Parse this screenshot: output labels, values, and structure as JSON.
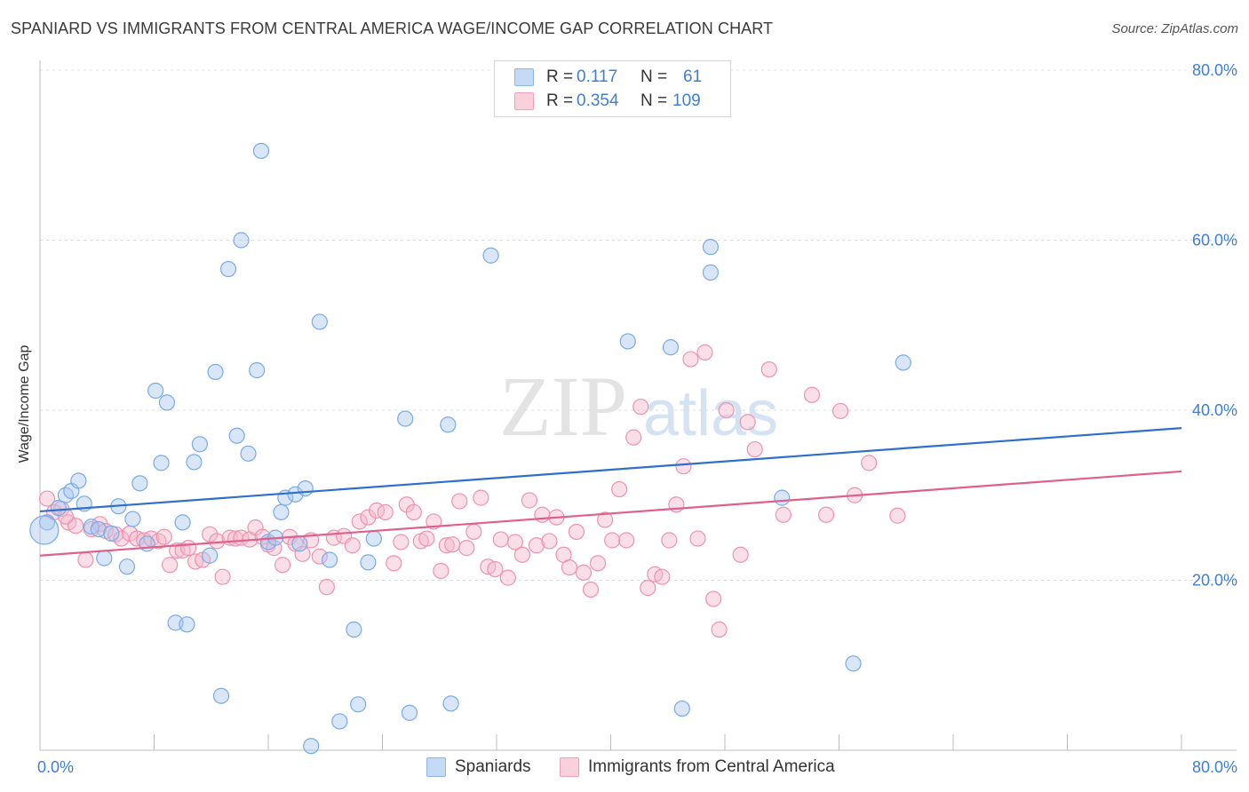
{
  "title": "SPANIARD VS IMMIGRANTS FROM CENTRAL AMERICA WAGE/INCOME GAP CORRELATION CHART",
  "source": "Source: ZipAtlas.com",
  "watermark": {
    "zip": "ZIP",
    "atlas": "atlas"
  },
  "legend": {
    "rows": [
      {
        "r_label": "R =",
        "r_value": "0.117",
        "n_label": "N =",
        "n_value": "61",
        "color": "#a9c8f0"
      },
      {
        "r_label": "R =",
        "r_value": "0.354",
        "n_label": "N =",
        "n_value": "109",
        "color": "#f5b8cb"
      }
    ]
  },
  "bottom_legend": [
    {
      "label": "Spaniards",
      "color": "#a9c8f0"
    },
    {
      "label": "Immigrants from Central America",
      "color": "#f5b8cb"
    }
  ],
  "chart_data": {
    "type": "scatter",
    "ylabel": "Wage/Income Gap",
    "xlim": [
      0,
      80
    ],
    "ylim": [
      0,
      80
    ],
    "x_tick_labels": [
      "0.0%",
      "80.0%"
    ],
    "y_tick_labels": [
      "20.0%",
      "40.0%",
      "60.0%",
      "80.0%"
    ],
    "y_ticks": [
      20,
      40,
      60,
      80
    ],
    "grid": true,
    "series": [
      {
        "name": "Spaniards",
        "color": "#7aaae6",
        "fill": "#a9c8f0",
        "trend": {
          "x": [
            0,
            80
          ],
          "y": [
            28.1,
            37.9
          ],
          "color": "#2f6fcc"
        },
        "points": [
          [
            0.5,
            26.8
          ],
          [
            1.3,
            28.5
          ],
          [
            1.8,
            30.0
          ],
          [
            2.2,
            30.5
          ],
          [
            2.7,
            31.7
          ],
          [
            3.1,
            29.0
          ],
          [
            3.6,
            26.3
          ],
          [
            4.1,
            26.0
          ],
          [
            4.5,
            22.6
          ],
          [
            5.0,
            25.5
          ],
          [
            5.5,
            28.7
          ],
          [
            6.1,
            21.6
          ],
          [
            6.5,
            27.2
          ],
          [
            7.0,
            31.4
          ],
          [
            7.5,
            24.3
          ],
          [
            8.1,
            42.3
          ],
          [
            8.5,
            33.8
          ],
          [
            8.9,
            40.9
          ],
          [
            9.5,
            15.0
          ],
          [
            10.0,
            26.8
          ],
          [
            10.3,
            14.8
          ],
          [
            10.8,
            33.9
          ],
          [
            11.2,
            36.0
          ],
          [
            11.9,
            22.9
          ],
          [
            12.3,
            44.5
          ],
          [
            12.7,
            6.4
          ],
          [
            13.2,
            56.6
          ],
          [
            13.8,
            37.0
          ],
          [
            14.1,
            60.0
          ],
          [
            14.6,
            34.9
          ],
          [
            15.2,
            44.7
          ],
          [
            15.5,
            70.5
          ],
          [
            16.0,
            24.5
          ],
          [
            16.5,
            25.0
          ],
          [
            16.9,
            28.0
          ],
          [
            17.2,
            29.7
          ],
          [
            17.9,
            30.1
          ],
          [
            18.2,
            24.3
          ],
          [
            18.6,
            30.8
          ],
          [
            19.0,
            0.5
          ],
          [
            19.6,
            50.4
          ],
          [
            20.3,
            22.4
          ],
          [
            21.0,
            3.4
          ],
          [
            22.0,
            14.2
          ],
          [
            22.3,
            5.4
          ],
          [
            23.0,
            22.1
          ],
          [
            23.4,
            24.9
          ],
          [
            25.6,
            39.0
          ],
          [
            25.9,
            4.4
          ],
          [
            28.6,
            38.3
          ],
          [
            28.8,
            5.5
          ],
          [
            31.6,
            58.2
          ],
          [
            41.2,
            48.1
          ],
          [
            44.2,
            47.4
          ],
          [
            45.0,
            4.9
          ],
          [
            47.0,
            59.2
          ],
          [
            47.0,
            56.2
          ],
          [
            52.0,
            29.7
          ],
          [
            57.0,
            10.2
          ],
          [
            60.5,
            45.6
          ],
          [
            0.3,
            25.9
          ]
        ]
      },
      {
        "name": "Immigrants from Central America",
        "color": "#ee92ad",
        "fill": "#f5b8cb",
        "trend": {
          "x": [
            0,
            80
          ],
          "y": [
            22.9,
            32.8
          ],
          "color": "#e0608c"
        },
        "points": [
          [
            0.5,
            29.6
          ],
          [
            1.0,
            28.0
          ],
          [
            1.5,
            28.4
          ],
          [
            2.0,
            26.8
          ],
          [
            2.5,
            26.4
          ],
          [
            3.2,
            22.4
          ],
          [
            3.6,
            26.0
          ],
          [
            4.2,
            26.6
          ],
          [
            4.6,
            25.8
          ],
          [
            5.3,
            25.4
          ],
          [
            5.7,
            24.9
          ],
          [
            6.3,
            25.5
          ],
          [
            6.8,
            24.9
          ],
          [
            7.3,
            24.7
          ],
          [
            7.8,
            24.9
          ],
          [
            8.3,
            24.6
          ],
          [
            8.7,
            25.1
          ],
          [
            9.1,
            21.8
          ],
          [
            9.6,
            23.5
          ],
          [
            10.0,
            23.5
          ],
          [
            10.4,
            23.8
          ],
          [
            10.9,
            22.2
          ],
          [
            11.4,
            22.4
          ],
          [
            11.9,
            25.4
          ],
          [
            12.4,
            24.6
          ],
          [
            12.8,
            20.4
          ],
          [
            13.3,
            25.0
          ],
          [
            13.7,
            24.9
          ],
          [
            14.1,
            25.0
          ],
          [
            14.7,
            24.8
          ],
          [
            15.1,
            26.2
          ],
          [
            15.6,
            25.1
          ],
          [
            16.0,
            24.2
          ],
          [
            16.4,
            23.8
          ],
          [
            17.0,
            21.8
          ],
          [
            17.5,
            25.1
          ],
          [
            17.9,
            24.3
          ],
          [
            18.4,
            23.1
          ],
          [
            19.0,
            24.7
          ],
          [
            19.6,
            22.8
          ],
          [
            20.1,
            19.2
          ],
          [
            20.6,
            25.0
          ],
          [
            21.3,
            25.2
          ],
          [
            21.9,
            24.1
          ],
          [
            22.4,
            26.9
          ],
          [
            23.0,
            27.4
          ],
          [
            23.6,
            28.2
          ],
          [
            24.2,
            28.0
          ],
          [
            24.8,
            22.0
          ],
          [
            25.3,
            24.5
          ],
          [
            25.7,
            28.9
          ],
          [
            26.2,
            28.0
          ],
          [
            26.7,
            24.6
          ],
          [
            27.1,
            24.9
          ],
          [
            27.6,
            26.9
          ],
          [
            28.1,
            21.1
          ],
          [
            28.5,
            24.1
          ],
          [
            28.9,
            24.2
          ],
          [
            29.4,
            29.3
          ],
          [
            29.9,
            23.8
          ],
          [
            30.4,
            25.7
          ],
          [
            30.9,
            29.7
          ],
          [
            31.4,
            21.6
          ],
          [
            31.9,
            21.3
          ],
          [
            32.3,
            24.8
          ],
          [
            32.8,
            20.3
          ],
          [
            33.3,
            24.5
          ],
          [
            33.8,
            23.0
          ],
          [
            34.3,
            29.4
          ],
          [
            34.8,
            24.1
          ],
          [
            35.2,
            27.7
          ],
          [
            35.7,
            24.6
          ],
          [
            36.2,
            27.4
          ],
          [
            36.7,
            23.0
          ],
          [
            37.1,
            21.5
          ],
          [
            37.6,
            25.7
          ],
          [
            38.1,
            20.9
          ],
          [
            38.6,
            18.9
          ],
          [
            39.1,
            22.0
          ],
          [
            39.6,
            27.1
          ],
          [
            40.1,
            24.7
          ],
          [
            40.6,
            30.7
          ],
          [
            41.1,
            24.7
          ],
          [
            41.6,
            36.8
          ],
          [
            42.1,
            40.4
          ],
          [
            42.6,
            19.1
          ],
          [
            43.1,
            20.7
          ],
          [
            43.6,
            20.4
          ],
          [
            44.1,
            24.7
          ],
          [
            44.6,
            28.9
          ],
          [
            45.1,
            33.4
          ],
          [
            45.6,
            46.0
          ],
          [
            46.1,
            24.9
          ],
          [
            46.6,
            46.8
          ],
          [
            47.2,
            17.8
          ],
          [
            47.6,
            14.2
          ],
          [
            48.1,
            40.0
          ],
          [
            49.1,
            23.0
          ],
          [
            49.6,
            38.6
          ],
          [
            50.1,
            35.4
          ],
          [
            51.1,
            44.8
          ],
          [
            52.1,
            27.7
          ],
          [
            54.1,
            41.8
          ],
          [
            55.1,
            27.7
          ],
          [
            56.1,
            39.9
          ],
          [
            57.1,
            30.0
          ],
          [
            58.1,
            33.8
          ],
          [
            60.1,
            27.6
          ],
          [
            1.8,
            27.5
          ]
        ]
      }
    ]
  }
}
